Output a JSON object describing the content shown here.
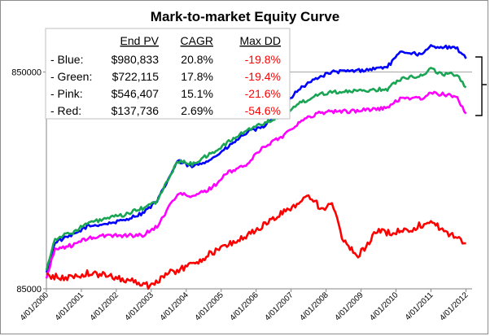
{
  "chart_data": {
    "type": "line",
    "title": "Mark-to-market Equity Curve",
    "y_scale": "log",
    "ylim": [
      85000,
      1350000
    ],
    "yticks": [
      85000,
      850000
    ],
    "ytick_labels": [
      "85000",
      "850000"
    ],
    "x_range": [
      "2000-04-01",
      "2012-05-01"
    ],
    "xtick_labels": [
      "4/01/2000",
      "4/01/2001",
      "4/01/2002",
      "4/01/2003",
      "4/01/2004",
      "4/01/2005",
      "4/01/2006",
      "4/01/2007",
      "4/01/2008",
      "4/01/2009",
      "4/01/2010",
      "4/01/2011",
      "4/01/2012"
    ],
    "grid": false,
    "hline_value": 850000,
    "right_bracket": true,
    "series": [
      {
        "key": "blue",
        "color": "#0000ff",
        "x": [
          "2000-04-01",
          "2000-07-01",
          "2001-01-01",
          "2001-06-01",
          "2002-01-01",
          "2002-06-01",
          "2003-01-01",
          "2003-06-01",
          "2004-01-01",
          "2004-06-01",
          "2005-01-01",
          "2005-06-01",
          "2006-01-01",
          "2006-06-01",
          "2007-01-01",
          "2007-06-01",
          "2008-01-01",
          "2008-06-01",
          "2009-01-01",
          "2009-06-01",
          "2010-01-01",
          "2010-06-01",
          "2011-01-01",
          "2011-04-01",
          "2011-08-01",
          "2012-01-01",
          "2012-04-01"
        ],
        "y": [
          100000,
          140000,
          150000,
          165000,
          170000,
          175000,
          190000,
          215000,
          330000,
          310000,
          340000,
          380000,
          450000,
          470000,
          580000,
          700000,
          800000,
          850000,
          860000,
          870000,
          900000,
          1060000,
          1020000,
          1120000,
          1110000,
          1090000,
          980833
        ]
      },
      {
        "key": "green",
        "color": "#1aa554",
        "x": [
          "2000-04-01",
          "2000-07-01",
          "2001-01-01",
          "2001-06-01",
          "2002-01-01",
          "2002-06-01",
          "2003-01-01",
          "2003-06-01",
          "2004-01-01",
          "2004-06-01",
          "2005-01-01",
          "2005-06-01",
          "2006-01-01",
          "2006-06-01",
          "2007-01-01",
          "2007-06-01",
          "2008-01-01",
          "2008-06-01",
          "2009-01-01",
          "2009-06-01",
          "2010-01-01",
          "2010-06-01",
          "2011-01-01",
          "2011-04-01",
          "2011-08-01",
          "2012-01-01",
          "2012-04-01"
        ],
        "y": [
          105000,
          145000,
          155000,
          170000,
          180000,
          185000,
          200000,
          215000,
          330000,
          320000,
          360000,
          400000,
          460000,
          490000,
          540000,
          600000,
          670000,
          690000,
          690000,
          700000,
          710000,
          800000,
          820000,
          880000,
          830000,
          830000,
          722115
        ]
      },
      {
        "key": "pink",
        "color": "#ff00ff",
        "x": [
          "2000-04-01",
          "2000-07-01",
          "2001-01-01",
          "2001-06-01",
          "2002-01-01",
          "2002-06-01",
          "2003-01-01",
          "2003-06-01",
          "2004-01-01",
          "2004-06-01",
          "2005-01-01",
          "2005-06-01",
          "2006-01-01",
          "2006-06-01",
          "2007-01-01",
          "2007-06-01",
          "2008-01-01",
          "2008-06-01",
          "2009-01-01",
          "2009-06-01",
          "2010-01-01",
          "2010-06-01",
          "2011-01-01",
          "2011-04-01",
          "2011-08-01",
          "2012-01-01",
          "2012-04-01"
        ],
        "y": [
          95000,
          130000,
          135000,
          145000,
          150000,
          150000,
          150000,
          165000,
          235000,
          225000,
          250000,
          290000,
          320000,
          380000,
          430000,
          490000,
          550000,
          560000,
          560000,
          570000,
          580000,
          650000,
          640000,
          680000,
          670000,
          650000,
          546407
        ]
      },
      {
        "key": "red",
        "color": "#ff0000",
        "x": [
          "2000-04-01",
          "2000-10-01",
          "2001-06-01",
          "2002-01-01",
          "2002-10-01",
          "2003-03-01",
          "2003-10-01",
          "2004-06-01",
          "2005-01-01",
          "2005-06-01",
          "2006-01-01",
          "2006-06-01",
          "2007-01-01",
          "2007-06-01",
          "2007-10-01",
          "2008-03-01",
          "2008-06-01",
          "2008-10-01",
          "2009-03-01",
          "2009-09-01",
          "2010-03-01",
          "2010-09-01",
          "2011-04-01",
          "2011-09-01",
          "2012-01-01",
          "2012-04-01"
        ],
        "y": [
          98000,
          95000,
          100000,
          98000,
          92000,
          88000,
          100000,
          110000,
          125000,
          135000,
          150000,
          165000,
          190000,
          210000,
          230000,
          195000,
          210000,
          140000,
          120000,
          155000,
          155000,
          160000,
          175000,
          155000,
          145000,
          137736
        ]
      }
    ],
    "table": {
      "headers": [
        "End PV",
        "CAGR",
        "Max DD"
      ],
      "rows": [
        {
          "label": "- Blue:",
          "end_pv": "$980,833",
          "cagr": "20.8%",
          "max_dd": "-19.8%"
        },
        {
          "label": "- Green:",
          "end_pv": "$722,115",
          "cagr": "17.8%",
          "max_dd": "-19.4%"
        },
        {
          "label": "- Pink:",
          "end_pv": "$546,407",
          "cagr": "15.1%",
          "max_dd": "-21.6%"
        },
        {
          "label": "- Red:",
          "end_pv": "$137,736",
          "cagr": "2.69%",
          "max_dd": "-54.6%"
        }
      ],
      "negative_color": "#ff0000"
    }
  }
}
